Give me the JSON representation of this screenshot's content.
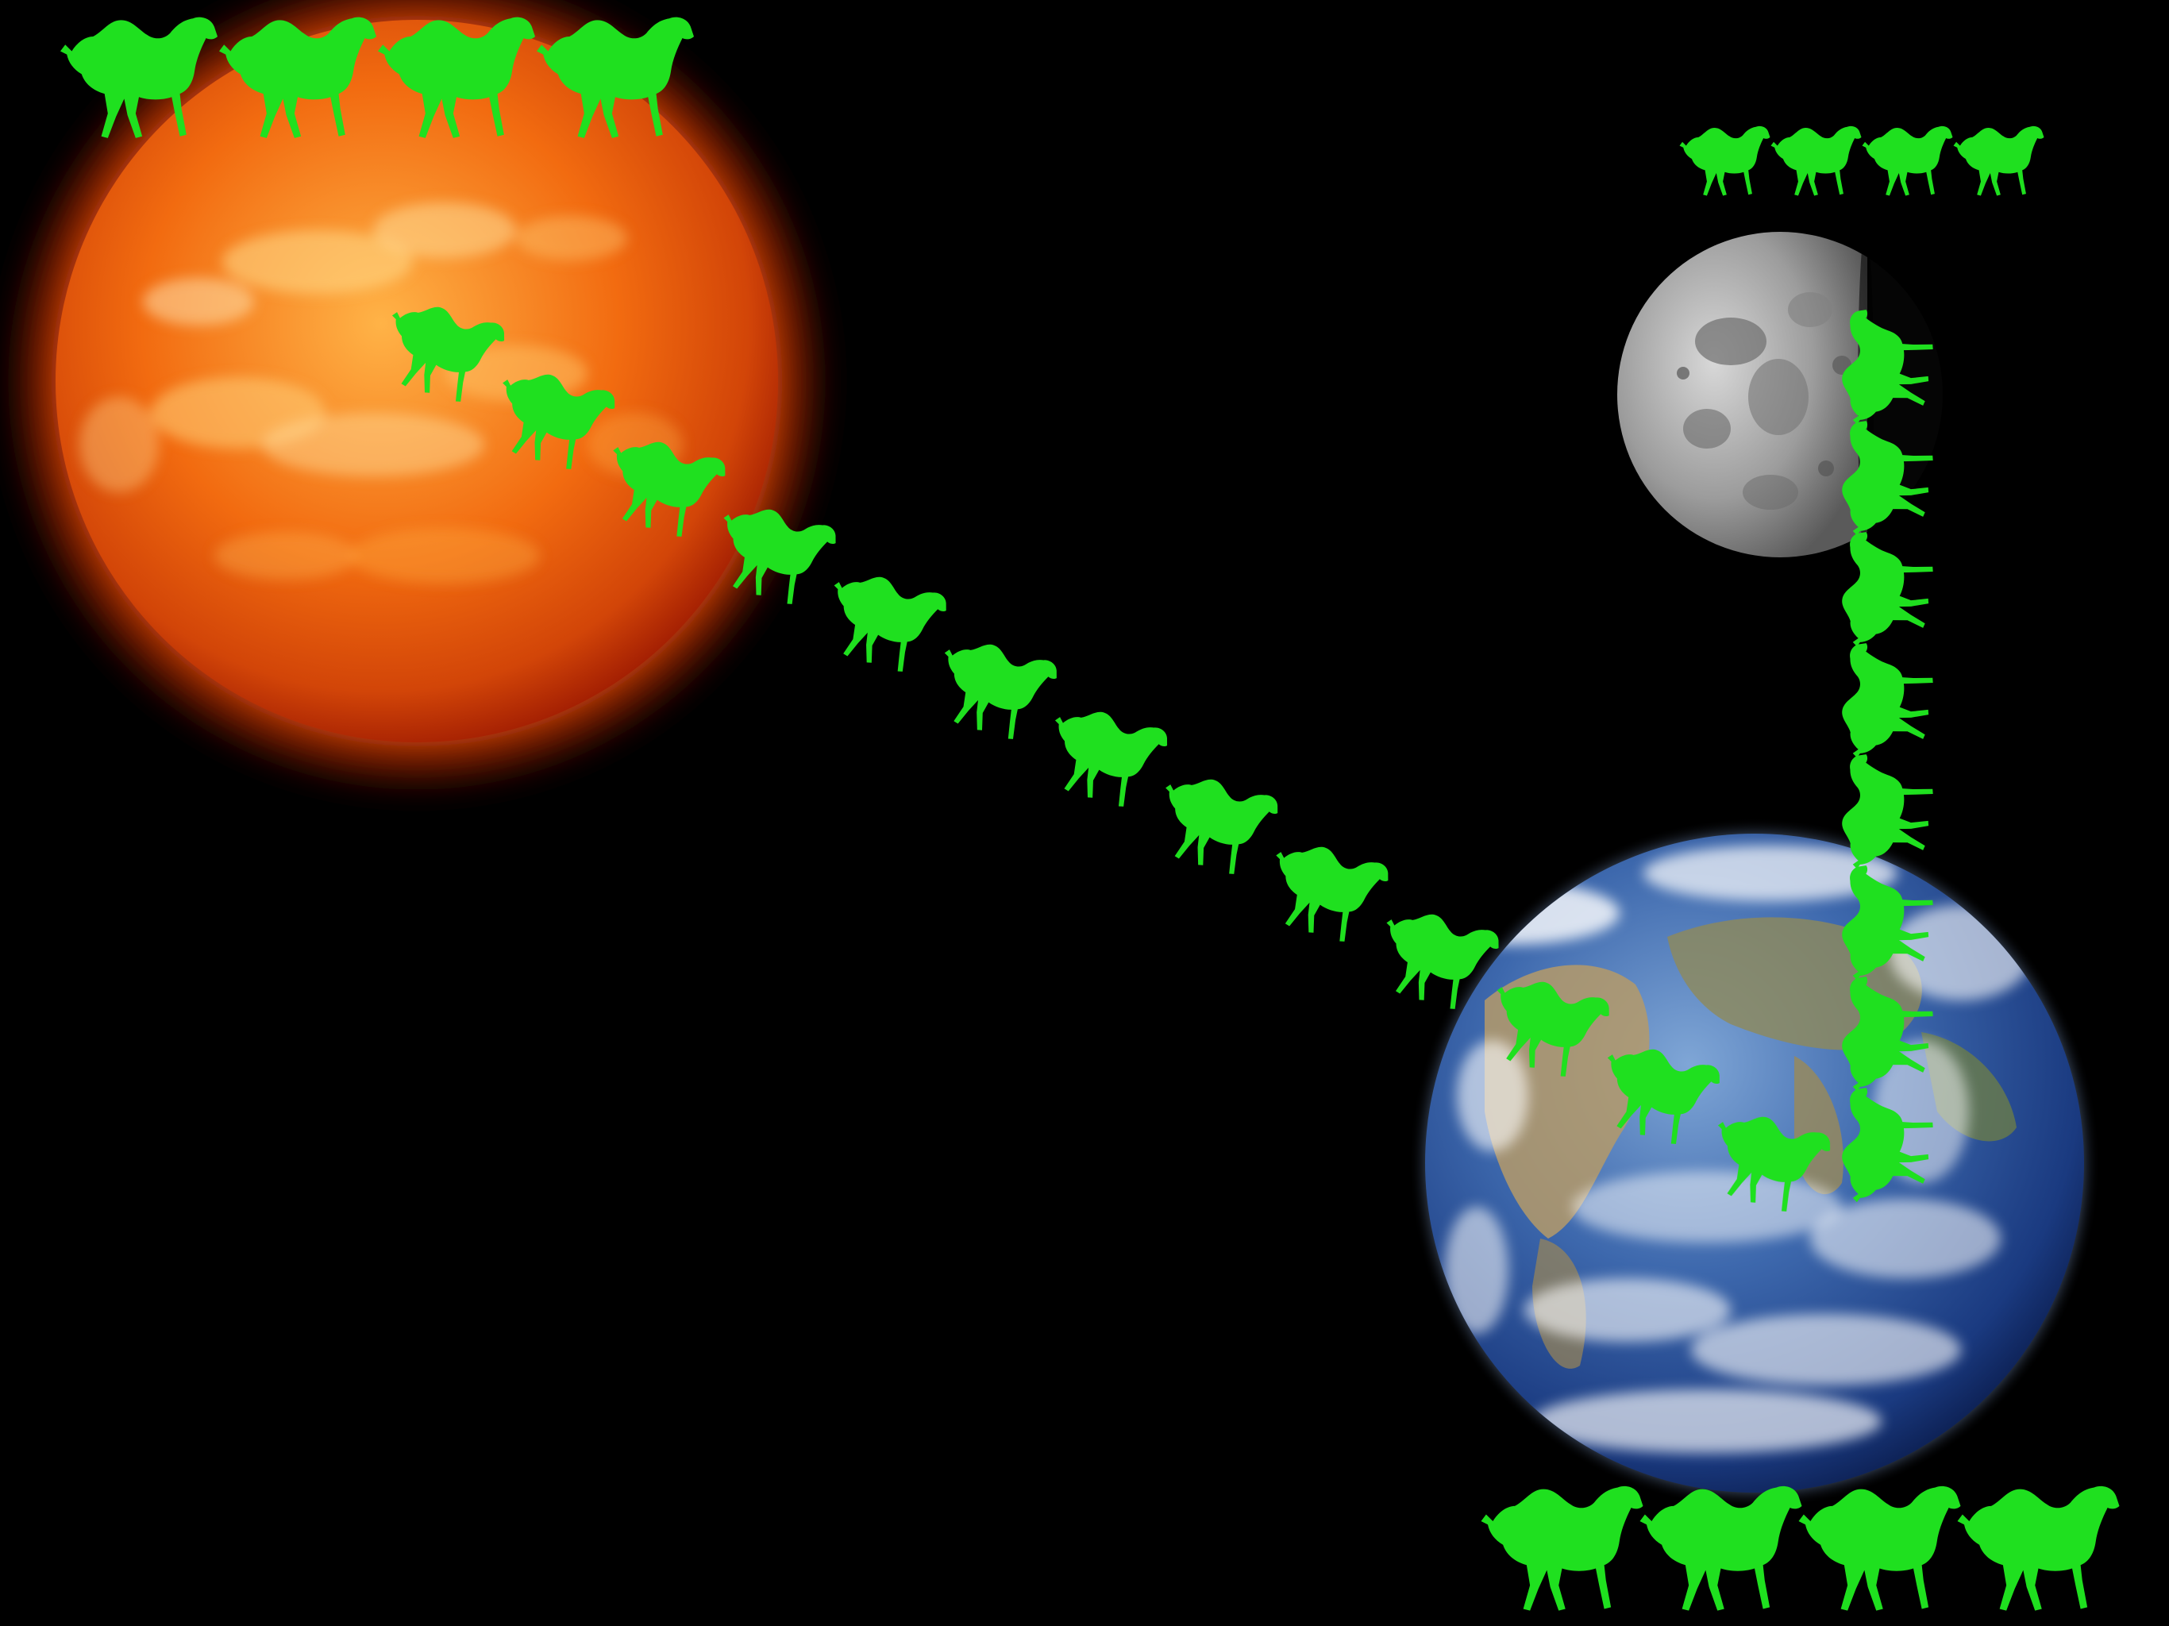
{
  "scene": {
    "background_color": "#000000",
    "camel_color": "#1fe01f",
    "bodies": [
      {
        "name": "sun",
        "colors": [
          "#ffd27a",
          "#ff8a1a",
          "#e04a06",
          "#a81f02"
        ]
      },
      {
        "name": "moon",
        "colors": [
          "#d6d6d6",
          "#9a9a9a",
          "#4a4a4a"
        ]
      },
      {
        "name": "earth",
        "colors": [
          "#ffffff",
          "#4f7fc0",
          "#1d3f8a",
          "#0a1c4a"
        ]
      }
    ],
    "camel_rows": [
      {
        "name": "sun-top-row",
        "count": 4
      },
      {
        "name": "sun-to-earth-line",
        "count": 13
      },
      {
        "name": "moon-top-row",
        "count": 4
      },
      {
        "name": "moon-to-earth-column",
        "count": 8
      },
      {
        "name": "earth-bottom-row",
        "count": 4
      }
    ]
  }
}
